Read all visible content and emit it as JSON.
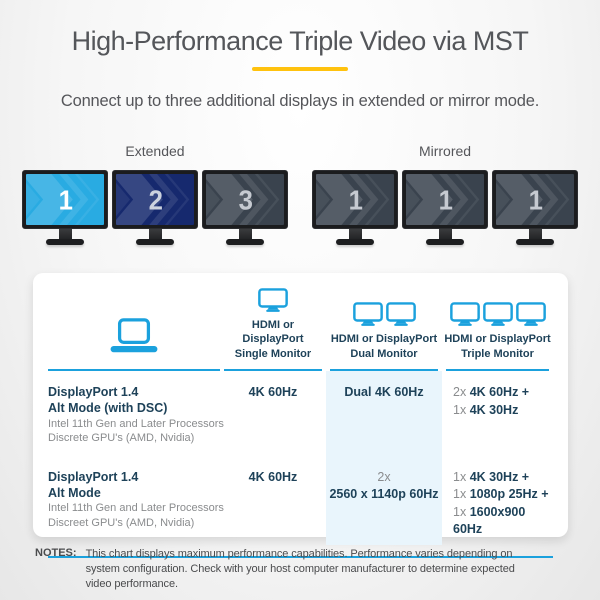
{
  "page": {
    "title": "High-Performance Triple Video via MST",
    "subtitle": "Connect up to three additional displays in extended or mirror mode.",
    "accent_color": "#ffc20e",
    "brand_blue": "#1ba1dd"
  },
  "modes": [
    {
      "label": "Extended",
      "monitors": [
        {
          "number": "1",
          "screen_color": "#29abe2",
          "number_color": "#ffffff"
        },
        {
          "number": "2",
          "screen_color": "#16296e",
          "number_color": "#ccd2de"
        },
        {
          "number": "3",
          "screen_color": "#3a434e",
          "number_color": "#c6cad1"
        }
      ]
    },
    {
      "label": "Mirrored",
      "monitors": [
        {
          "number": "1",
          "screen_color": "#3a434e",
          "number_color": "#c6cad1"
        },
        {
          "number": "1",
          "screen_color": "#3a434e",
          "number_color": "#c6cad1"
        },
        {
          "number": "1",
          "screen_color": "#3a434e",
          "number_color": "#c6cad1"
        }
      ]
    }
  ],
  "table": {
    "headers": {
      "single": {
        "line1": "HDMI or DisplayPort",
        "line2": "Single Monitor"
      },
      "dual": {
        "line1": "HDMI or DisplayPort",
        "line2": "Dual Monitor"
      },
      "triple": {
        "line1": "HDMI or DisplayPort",
        "line2": "Triple Monitor"
      }
    },
    "rows": [
      {
        "name": [
          "DisplayPort 1.4",
          "Alt Mode (with DSC)"
        ],
        "details": [
          "Intel 11th Gen and Later Processors",
          "Discrete GPU's (AMD, Nvidia)"
        ],
        "single": [
          {
            "value": "4K 60Hz"
          }
        ],
        "dual": [
          {
            "value": "Dual 4K 60Hz"
          }
        ],
        "triple": [
          {
            "prefix": "2x ",
            "value": "4K 60Hz +"
          },
          {
            "prefix": "1x ",
            "value": "4K 30Hz"
          }
        ]
      },
      {
        "name": [
          "DisplayPort 1.4",
          "Alt Mode"
        ],
        "details": [
          "Intel 11th Gen and Later Processors",
          "Discreet GPU's (AMD, Nvidia)"
        ],
        "single": [
          {
            "value": "4K 60Hz"
          }
        ],
        "dual": [
          {
            "prefix": "2x",
            "value": ""
          },
          {
            "value": "2560 x 1140p 60Hz"
          }
        ],
        "triple": [
          {
            "prefix": "1x ",
            "value": "4K 30Hz +"
          },
          {
            "prefix": "1x ",
            "value": "1080p 25Hz +"
          },
          {
            "prefix": "1x ",
            "value": "1600x900 60Hz"
          }
        ]
      }
    ]
  },
  "notes": {
    "label": "NOTES:",
    "text": "This chart displays maximum performance capabilities. Performance varies depending on system configuration. Check with your host computer manufacturer to determine expected video performance."
  }
}
